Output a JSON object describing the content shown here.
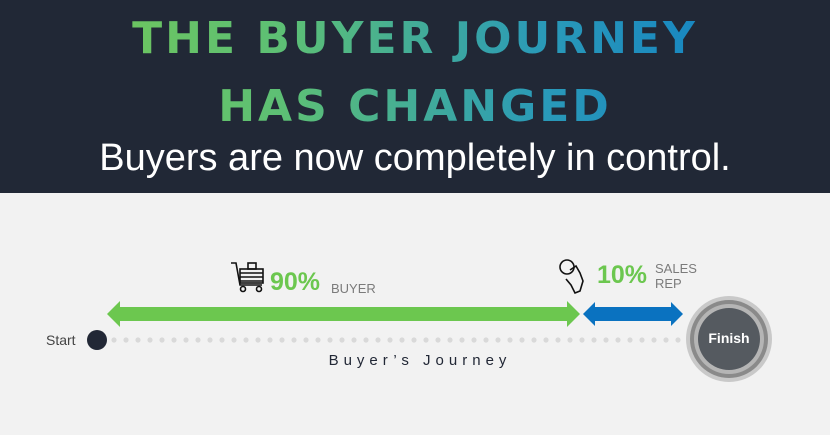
{
  "header": {
    "title_line1": "THE BUYER JOURNEY",
    "title_line2": "HAS CHANGED",
    "subtitle": "Buyers are now completely in control."
  },
  "journey": {
    "start_label": "Start",
    "finish_label": "Finish",
    "axis_label": "Buyer’s Journey",
    "buyer": {
      "percent": "90%",
      "label": "BUYER",
      "share": 90,
      "icon": "shopping-cart-icon",
      "color": "#6cc74f"
    },
    "sales_rep": {
      "percent": "10%",
      "label_line1": "SALES",
      "label_line2": "REP",
      "share": 10,
      "icon": "hand-pointer-icon",
      "color": "#0a72c0"
    }
  },
  "colors": {
    "header_bg": "#212836",
    "background": "#f2f2f2",
    "gradient_start": "#78c850",
    "gradient_end": "#0a78c8"
  }
}
